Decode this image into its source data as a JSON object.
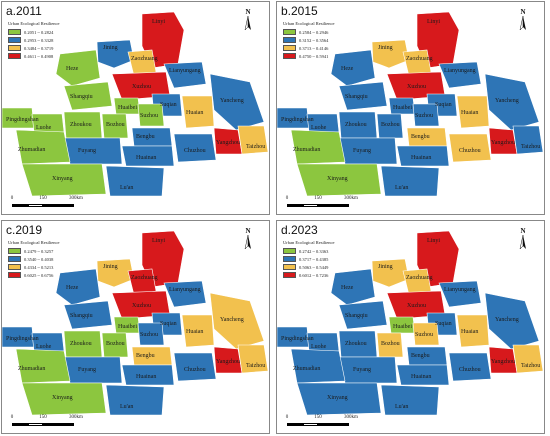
{
  "colors": {
    "c1": "#8cc63f",
    "c2": "#2e75b6",
    "c3": "#f2c14e",
    "c4": "#d7191c",
    "border": "#ffffff"
  },
  "legend_title": "Urban Ecological Resilience",
  "north_label": "N",
  "scale": {
    "zero": "0",
    "mid": "150",
    "end": "300km"
  },
  "cities": [
    "Jining",
    "Linyi",
    "Heze",
    "Zaozhuang",
    "Lianyungang",
    "Xuzhou",
    "Shangqiu",
    "Huaibei",
    "Suqian",
    "Suzhou",
    "Yancheng",
    "Huaian",
    "Pingdingshan",
    "Luohe",
    "Zhoukou",
    "Bozhou",
    "Bengbu",
    "Yangzhou",
    "Fuyang",
    "Chuzhou",
    "Taizhou",
    "Zhumadian",
    "Huainan",
    "Xinyang",
    "Lu'an"
  ],
  "panels": [
    {
      "title": "a.2011",
      "legend": [
        "0.2051 ~ 0.2824",
        "0.2953 ~ 0.3328",
        "0.3484 ~ 0.3719",
        "0.4611 ~ 0.4908"
      ],
      "classes": {
        "Jining": 2,
        "Linyi": 4,
        "Heze": 1,
        "Zaozhuang": 3,
        "Lianyungang": 2,
        "Xuzhou": 4,
        "Shangqiu": 1,
        "Huaibei": 1,
        "Suqian": 2,
        "Suzhou": 1,
        "Yancheng": 2,
        "Huaian": 3,
        "Pingdingshan": 1,
        "Luohe": 1,
        "Zhoukou": 1,
        "Bozhou": 1,
        "Bengbu": 2,
        "Yangzhou": 4,
        "Fuyang": 2,
        "Chuzhou": 2,
        "Taizhou": 3,
        "Zhumadian": 1,
        "Huainan": 2,
        "Xinyang": 1,
        "Lu'an": 2
      }
    },
    {
      "title": "b.2015",
      "legend": [
        "0.2584 ~ 0.2946",
        "0.3152 ~ 0.3564",
        "0.3713 ~ 0.4146",
        "0.4750 ~ 0.5941"
      ],
      "classes": {
        "Jining": 3,
        "Linyi": 4,
        "Heze": 2,
        "Zaozhuang": 3,
        "Lianyungang": 2,
        "Xuzhou": 4,
        "Shangqiu": 2,
        "Huaibei": 2,
        "Suqian": 2,
        "Suzhou": 2,
        "Yancheng": 2,
        "Huaian": 3,
        "Pingdingshan": 2,
        "Luohe": 2,
        "Zhoukou": 2,
        "Bozhou": 2,
        "Bengbu": 3,
        "Yangzhou": 4,
        "Fuyang": 2,
        "Chuzhou": 3,
        "Taizhou": 2,
        "Zhumadian": 1,
        "Huainan": 2,
        "Xinyang": 1,
        "Lu'an": 2
      }
    },
    {
      "title": "c.2019",
      "legend": [
        "0.2479 ~ 0.3257",
        "0.3540 ~ 0.4038",
        "0.4334 ~ 0.5213",
        "0.6025 ~ 0.6756"
      ],
      "classes": {
        "Jining": 3,
        "Linyi": 4,
        "Heze": 2,
        "Zaozhuang": 4,
        "Lianyungang": 2,
        "Xuzhou": 4,
        "Shangqiu": 2,
        "Huaibei": 1,
        "Suqian": 2,
        "Suzhou": 2,
        "Yancheng": 3,
        "Huaian": 3,
        "Pingdingshan": 2,
        "Luohe": 2,
        "Zhoukou": 1,
        "Bozhou": 1,
        "Bengbu": 3,
        "Yangzhou": 4,
        "Fuyang": 2,
        "Chuzhou": 2,
        "Taizhou": 3,
        "Zhumadian": 1,
        "Huainan": 2,
        "Xinyang": 1,
        "Lu'an": 2
      }
    },
    {
      "title": "d.2023",
      "legend": [
        "0.2742 ~ 0.3363",
        "0.3717 ~ 0.4385",
        "0.5063 ~ 0.5449",
        "0.6012 ~ 0.7236"
      ],
      "classes": {
        "Jining": 3,
        "Linyi": 4,
        "Heze": 2,
        "Zaozhuang": 3,
        "Lianyungang": 2,
        "Xuzhou": 4,
        "Shangqiu": 2,
        "Huaibei": 1,
        "Suqian": 2,
        "Suzhou": 3,
        "Yancheng": 2,
        "Huaian": 3,
        "Pingdingshan": 2,
        "Luohe": 2,
        "Zhoukou": 2,
        "Bozhou": 3,
        "Bengbu": 2,
        "Yangzhou": 4,
        "Fuyang": 2,
        "Chuzhou": 2,
        "Taizhou": 3,
        "Zhumadian": 2,
        "Huainan": 2,
        "Xinyang": 2,
        "Lu'an": 2
      }
    }
  ]
}
